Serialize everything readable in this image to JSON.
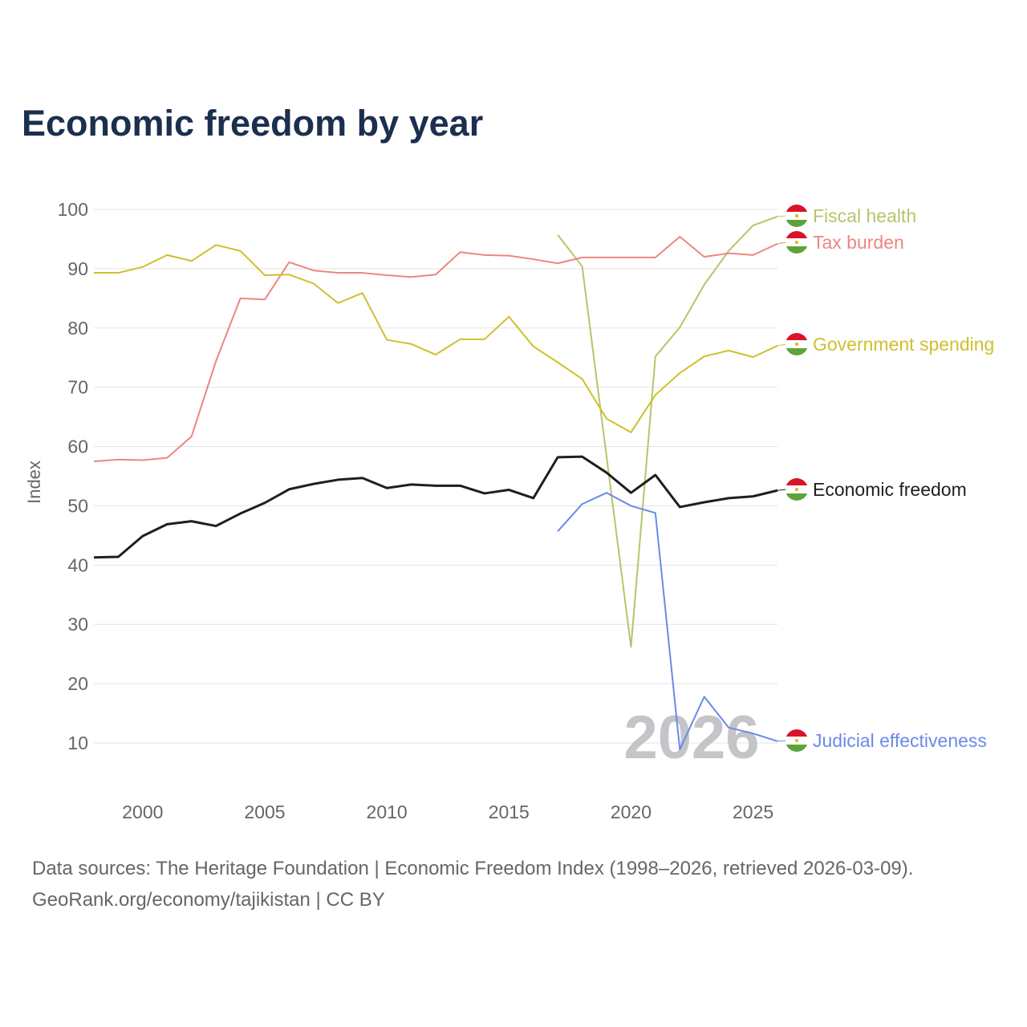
{
  "title": "Economic freedom by year",
  "footer": {
    "line1": "Data sources: The Heritage Foundation | Economic Freedom Index (1998–2026, retrieved 2026-03-09).",
    "line2": "GeoRank.org/economy/tajikistan | CC BY"
  },
  "chart_data": {
    "type": "line",
    "title": "Economic freedom by year",
    "xlabel": "",
    "ylabel": "Index",
    "xlim": [
      1998,
      2026
    ],
    "ylim": [
      0,
      100
    ],
    "x_ticks": [
      2000,
      2005,
      2010,
      2015,
      2020,
      2025
    ],
    "y_ticks": [
      10,
      20,
      30,
      40,
      50,
      60,
      70,
      80,
      90,
      100
    ],
    "grid": true,
    "watermark": "2026",
    "legend_placement": "right, inline labels with flag-icon",
    "series": [
      {
        "name": "Fiscal health",
        "color": "#b5c56a",
        "width": 2,
        "x": [
          2017,
          2018,
          2019,
          2020,
          2021,
          2022,
          2023,
          2024,
          2025,
          2026
        ],
        "values": [
          95.7,
          90.4,
          58.3,
          26.2,
          75.2,
          80.1,
          87.3,
          93.0,
          97.3,
          98.8
        ]
      },
      {
        "name": "Tax burden",
        "color": "#ec8680",
        "width": 2,
        "x": [
          1998,
          1999,
          2000,
          2001,
          2002,
          2003,
          2004,
          2005,
          2006,
          2007,
          2008,
          2009,
          2010,
          2011,
          2012,
          2013,
          2014,
          2015,
          2016,
          2017,
          2018,
          2019,
          2020,
          2021,
          2022,
          2023,
          2024,
          2025,
          2026
        ],
        "values": [
          57.5,
          57.8,
          57.7,
          58.1,
          61.7,
          74.4,
          85.0,
          84.8,
          91.1,
          89.7,
          89.3,
          89.3,
          88.9,
          88.6,
          89.0,
          92.8,
          92.3,
          92.2,
          91.6,
          90.9,
          91.9,
          91.9,
          91.9,
          91.9,
          95.4,
          92.0,
          92.6,
          92.3,
          94.2
        ]
      },
      {
        "name": "Government spending",
        "color": "#cfc02e",
        "width": 2,
        "x": [
          1998,
          1999,
          2000,
          2001,
          2002,
          2003,
          2004,
          2005,
          2006,
          2007,
          2008,
          2009,
          2010,
          2011,
          2012,
          2013,
          2014,
          2015,
          2016,
          2017,
          2018,
          2019,
          2020,
          2021,
          2022,
          2023,
          2024,
          2025,
          2026
        ],
        "values": [
          89.3,
          89.3,
          90.3,
          92.3,
          91.3,
          94.0,
          93.0,
          88.9,
          89.0,
          87.5,
          84.2,
          85.9,
          78.0,
          77.3,
          75.5,
          78.1,
          78.1,
          81.9,
          76.9,
          74.2,
          71.4,
          64.7,
          62.4,
          68.7,
          72.4,
          75.2,
          76.2,
          75.1,
          77.0
        ]
      },
      {
        "name": "Economic freedom",
        "color": "#1f1f1f",
        "width": 3,
        "x": [
          1998,
          1999,
          2000,
          2001,
          2002,
          2003,
          2004,
          2005,
          2006,
          2007,
          2008,
          2009,
          2010,
          2011,
          2012,
          2013,
          2014,
          2015,
          2016,
          2017,
          2018,
          2019,
          2020,
          2021,
          2022,
          2023,
          2024,
          2025,
          2026
        ],
        "values": [
          41.3,
          41.4,
          44.9,
          46.9,
          47.4,
          46.6,
          48.7,
          50.5,
          52.8,
          53.7,
          54.4,
          54.7,
          53.0,
          53.6,
          53.4,
          53.4,
          52.1,
          52.7,
          51.3,
          58.2,
          58.3,
          55.6,
          52.2,
          55.2,
          49.8,
          50.6,
          51.3,
          51.6,
          52.6
        ]
      },
      {
        "name": "Judicial effectiveness",
        "color": "#6a8ae8",
        "width": 2,
        "x": [
          2017,
          2018,
          2019,
          2020,
          2021,
          2022,
          2023,
          2024,
          2025,
          2026
        ],
        "values": [
          45.7,
          50.3,
          52.2,
          50.0,
          48.8,
          8.9,
          17.8,
          12.6,
          11.6,
          10.3
        ]
      }
    ]
  }
}
